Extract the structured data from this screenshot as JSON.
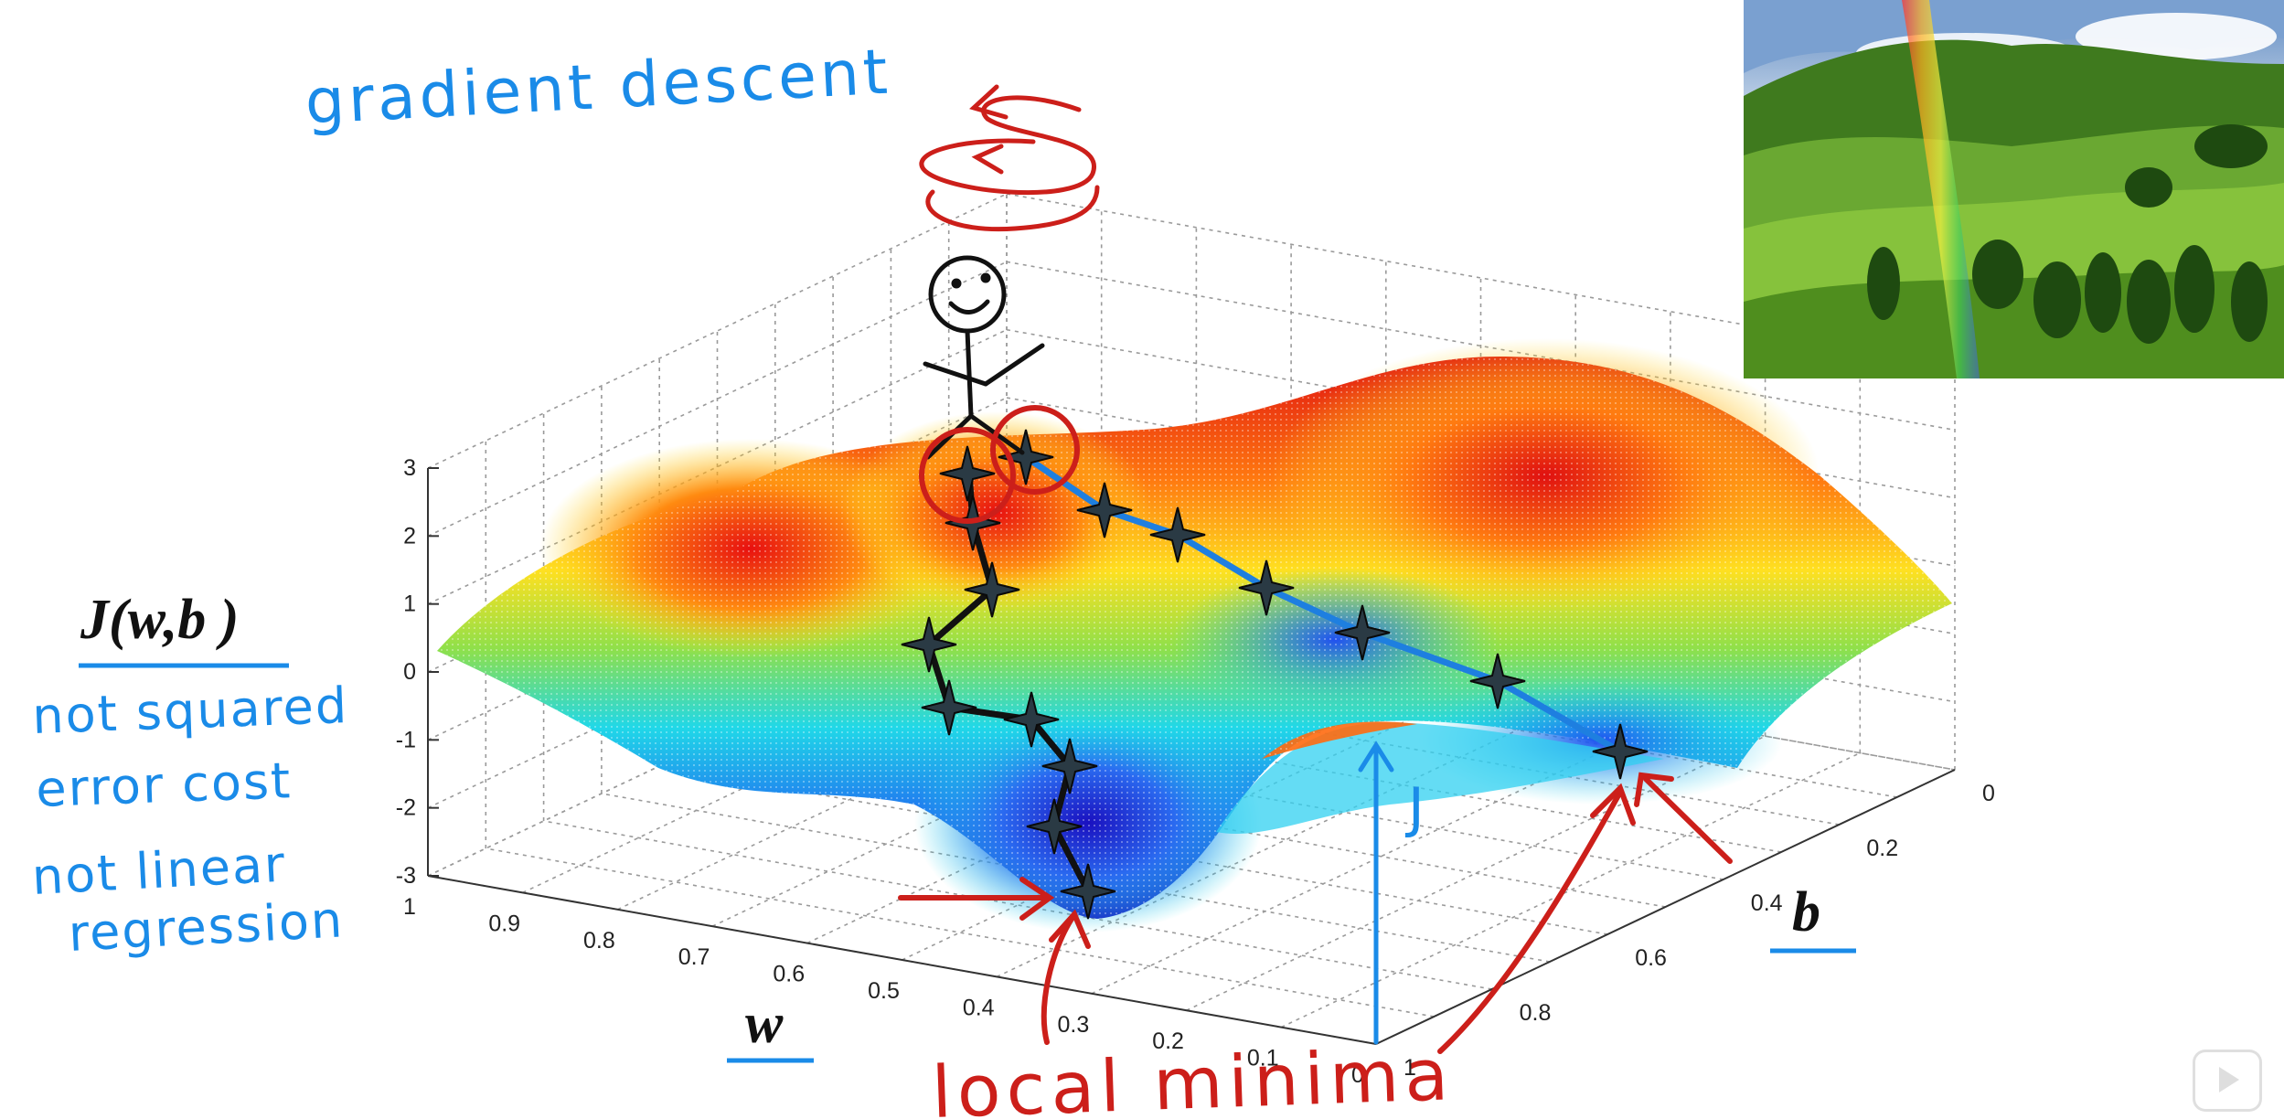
{
  "annotations": {
    "title": "gradient descent",
    "note_line1": "not squared",
    "note_line2": "error cost",
    "note_line3": "not linear",
    "note_line4": "regression",
    "local_minima": "local minima",
    "j_label": "J"
  },
  "axes": {
    "z_label": "J(w,b )",
    "w_label": "w",
    "b_label": "b",
    "z_ticks": [
      "3",
      "2",
      "1",
      "0",
      "-1",
      "-2",
      "-3"
    ],
    "w_ticks": [
      "1",
      "0.9",
      "0.8",
      "0.7",
      "0.6",
      "0.5",
      "0.4",
      "0.3",
      "0.2",
      "0.1",
      "0"
    ],
    "b_ticks": [
      "0",
      "0.2",
      "0.4",
      "0.6",
      "0.8",
      "1"
    ]
  },
  "colors": {
    "annotation_blue": "#1a8be8",
    "annotation_red": "#cc1f1a",
    "path_blue": "#1e7fe0",
    "path_black": "#111111"
  },
  "inset_image": {
    "subject": "rainbow over green hills photo"
  },
  "player": {
    "icon": "play-icon"
  }
}
